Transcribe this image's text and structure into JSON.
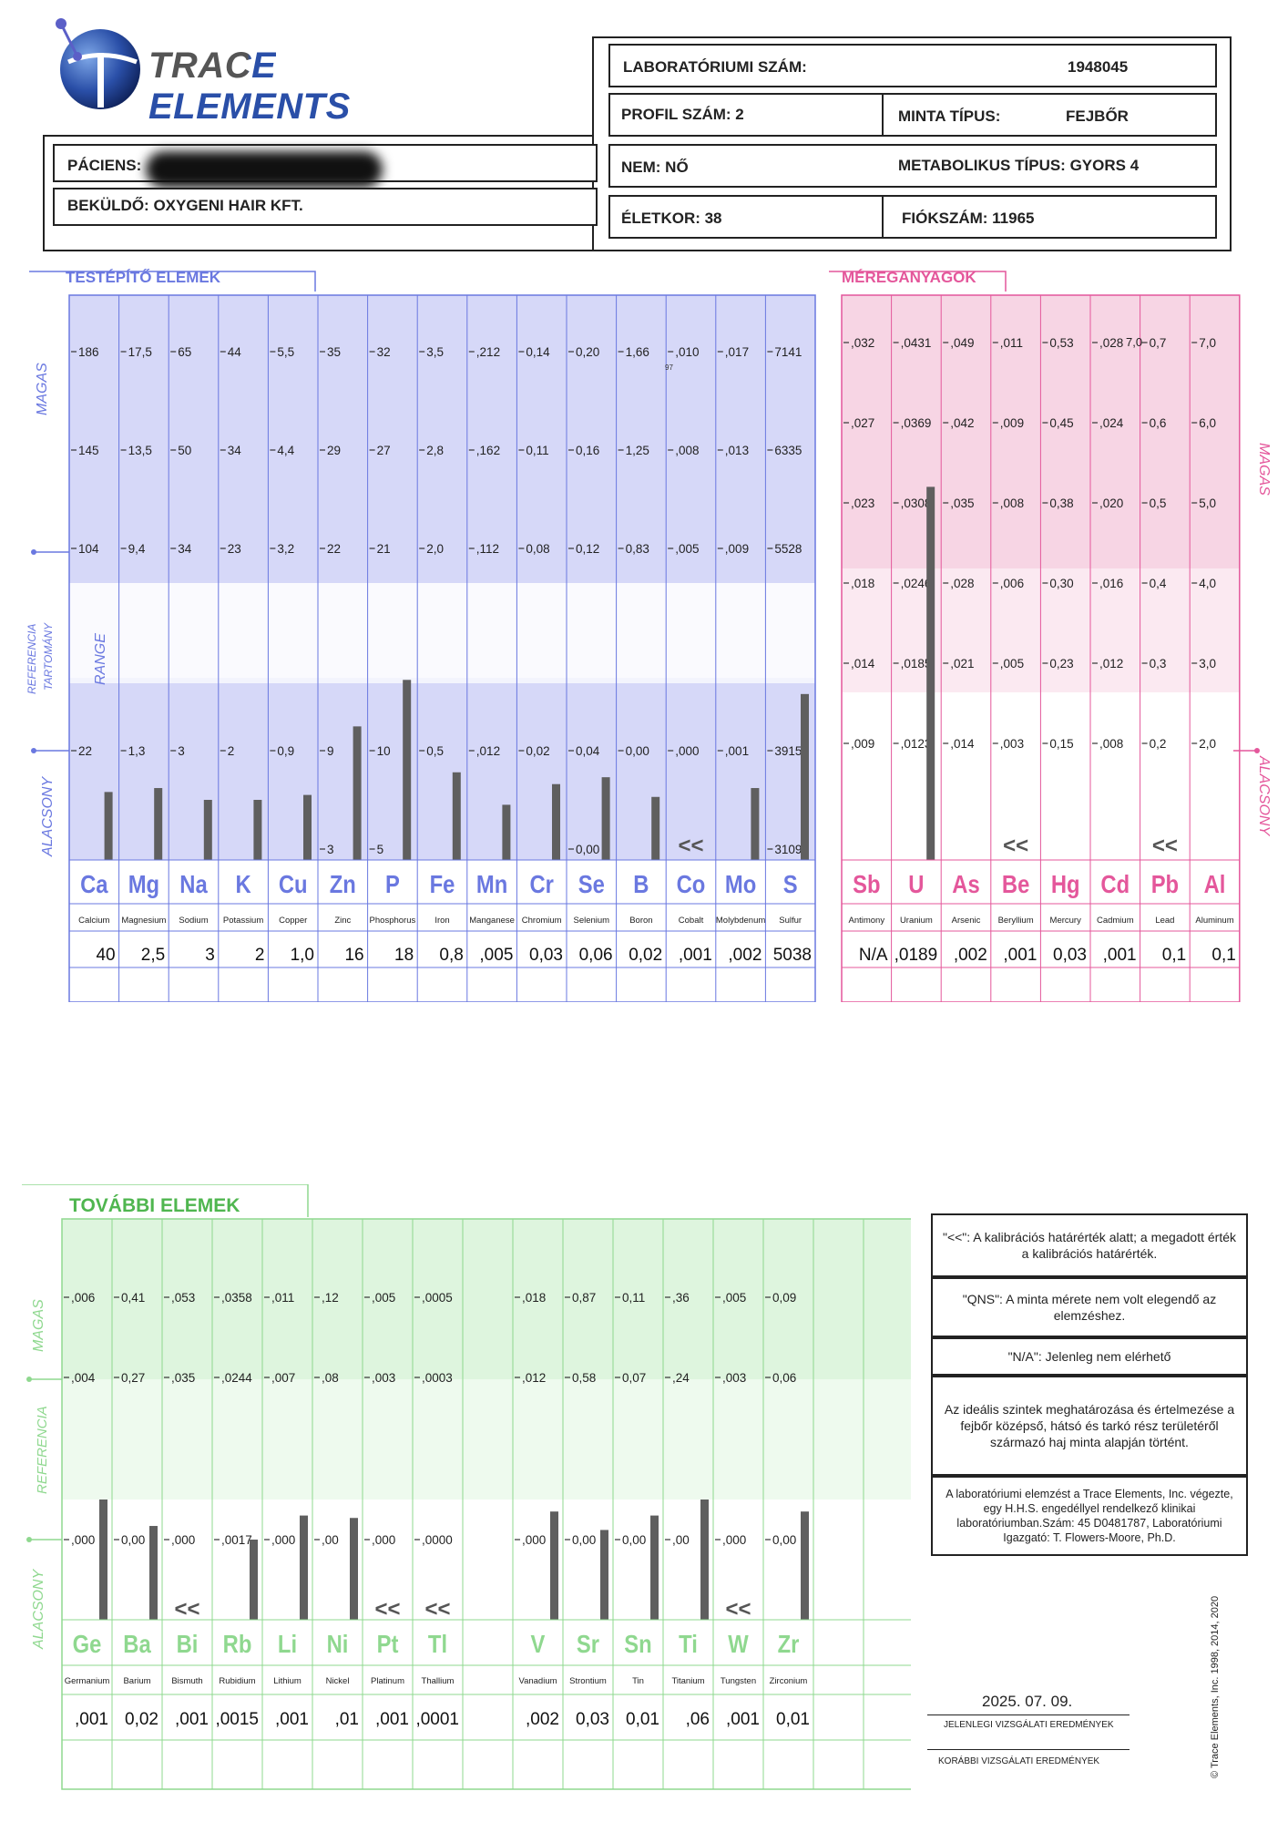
{
  "logo": {
    "text": "TRACE ELEMENTS"
  },
  "header": {
    "lab_label": "LABORATÓRIUMI SZÁM:",
    "lab_value": "1948045",
    "profile_label": "PROFIL SZÁM: 2",
    "sample_label": "MINTA TÍPUS:",
    "sample_value": "FEJBŐR",
    "patient_label": "PÁCIENS:",
    "sender": "BEKÜLDŐ: OXYGENI HAIR KFT.",
    "sex": "NEM: NŐ",
    "metabolic": "METABOLIKUS TÍPUS: GYORS 4",
    "age": "ÉLETKOR: 38",
    "drawer": "FIÓKSZÁM: 11965"
  },
  "colors": {
    "blue": "#6a78e0",
    "blue_band_dark": "#d6d8f8",
    "blue_band_light": "#eceefc",
    "pink": "#e4579b",
    "pink_band_dark": "#f7d5e4",
    "pink_band_light": "#fbe9f1",
    "green": "#8fd88f",
    "green_text": "#4fb64f",
    "green_band_dark": "#def5de",
    "green_band_light": "#eefaee",
    "bar": "#5f5f5f"
  },
  "labels": {
    "nutrients_title": "TESTÉPÍTŐ ELEMEK",
    "toxic_title": "MÉREGANYAGOK",
    "additional_title": "TOVÁBBI ELEMEK",
    "high": "MAGAS",
    "low": "ALACSONY",
    "reference": "REFERENCIA",
    "reference_range": "TARTOMÁNY",
    "range": "RANGE",
    "below_marker": "<<",
    "stray_mark": "97",
    "stray_pb_top": "7,0"
  },
  "chart_data": [
    {
      "type": "bar",
      "section": "nutrient",
      "symbols": [
        "Ca",
        "Mg",
        "Na",
        "K",
        "Cu",
        "Zn",
        "P",
        "Fe",
        "Mn",
        "Cr",
        "Se",
        "B",
        "Co",
        "Mo",
        "S"
      ],
      "names": [
        "Calcium",
        "Magnesium",
        "Sodium",
        "Potassium",
        "Copper",
        "Zinc",
        "Phosphorus",
        "Iron",
        "Manganese",
        "Chromium",
        "Selenium",
        "Boron",
        "Cobalt",
        "Molybdenum",
        "Sulfur"
      ],
      "results": [
        "40",
        "2,5",
        "3",
        "2",
        "1,0",
        "16",
        "18",
        "0,8",
        ",005",
        "0,03",
        "0,06",
        "0,02",
        ",001",
        ",002",
        "5038"
      ],
      "ticks": [
        [
          "186",
          "145",
          "104",
          "22",
          ""
        ],
        [
          "17,5",
          "13,5",
          "9,4",
          "1,3",
          ""
        ],
        [
          "65",
          "50",
          "34",
          "3",
          ""
        ],
        [
          "44",
          "34",
          "23",
          "2",
          ""
        ],
        [
          "5,5",
          "4,4",
          "3,2",
          "0,9",
          ""
        ],
        [
          "35",
          "29",
          "22",
          "9",
          "3"
        ],
        [
          "32",
          "27",
          "21",
          "10",
          "5"
        ],
        [
          "3,5",
          "2,8",
          "2,0",
          "0,5",
          ""
        ],
        [
          ",212",
          ",162",
          ",112",
          ",012",
          ""
        ],
        [
          "0,14",
          "0,11",
          "0,08",
          "0,02",
          ""
        ],
        [
          "0,20",
          "0,16",
          "0,12",
          "0,04",
          "0,00"
        ],
        [
          "1,66",
          "1,25",
          "0,83",
          "0,00",
          ""
        ],
        [
          ",010",
          ",008",
          ",005",
          ",000",
          ""
        ],
        [
          ",017",
          ",013",
          ",009",
          ",001",
          ""
        ],
        [
          "7141",
          "6335",
          "5528",
          "3915",
          "3109"
        ]
      ],
      "levels": [
        0.58,
        0.62,
        0.5,
        0.5,
        0.55,
        1.12,
        1.35,
        0.78,
        0.45,
        0.66,
        0.73,
        0.53,
        0,
        0.62,
        1.28
      ],
      "below_calibration": [
        false,
        false,
        false,
        false,
        false,
        false,
        false,
        false,
        false,
        false,
        false,
        false,
        true,
        false,
        false
      ]
    },
    {
      "type": "bar",
      "section": "toxic",
      "symbols": [
        "Sb",
        "U",
        "As",
        "Be",
        "Hg",
        "Cd",
        "Pb",
        "Al"
      ],
      "names": [
        "Antimony",
        "Uranium",
        "Arsenic",
        "Beryllium",
        "Mercury",
        "Cadmium",
        "Lead",
        "Aluminum"
      ],
      "results": [
        "N/A",
        ",0189",
        ",002",
        ",001",
        "0,03",
        ",001",
        "0,1",
        "0,1"
      ],
      "ticks": [
        [
          ",032",
          ",027",
          ",023",
          ",018",
          ",014",
          ",009"
        ],
        [
          ",0431",
          ",0369",
          ",0308",
          ",0246",
          ",0185",
          ",0123"
        ],
        [
          ",049",
          ",042",
          ",035",
          ",028",
          ",021",
          ",014"
        ],
        [
          ",011",
          ",009",
          ",008",
          ",006",
          ",005",
          ",003"
        ],
        [
          "0,53",
          "0,45",
          "0,38",
          "0,30",
          "0,23",
          "0,15"
        ],
        [
          ",028",
          ",024",
          ",020",
          ",016",
          ",012",
          ",008"
        ],
        [
          "0,7",
          "0,6",
          "0,5",
          "0,4",
          "0,3",
          "0,2"
        ],
        [
          "7,0",
          "6,0",
          "5,0",
          "4,0",
          "3,0",
          "2,0"
        ]
      ],
      "levels": [
        0,
        4.2,
        0,
        0,
        0,
        0,
        0,
        0
      ],
      "below_calibration": [
        false,
        false,
        false,
        true,
        false,
        false,
        true,
        false
      ]
    },
    {
      "type": "bar",
      "section": "additional",
      "symbols": [
        "Ge",
        "Ba",
        "Bi",
        "Rb",
        "Li",
        "Ni",
        "Pt",
        "Tl",
        "",
        "V",
        "Sr",
        "Sn",
        "Ti",
        "W",
        "Zr",
        "",
        ""
      ],
      "names": [
        "Germanium",
        "Barium",
        "Bismuth",
        "Rubidium",
        "Lithium",
        "Nickel",
        "Platinum",
        "Thallium",
        "",
        "Vanadium",
        "Strontium",
        "Tin",
        "Titanium",
        "Tungsten",
        "Zirconium",
        "",
        ""
      ],
      "results": [
        ",001",
        "0,02",
        ",001",
        ",0015",
        ",001",
        ",01",
        ",001",
        ",0001",
        "",
        ",002",
        "0,03",
        "0,01",
        ",06",
        ",001",
        "0,01",
        "",
        ""
      ],
      "ticks": [
        [
          ",006",
          ",004",
          ",000"
        ],
        [
          "0,41",
          "0,27",
          "0,00"
        ],
        [
          ",053",
          ",035",
          ",000"
        ],
        [
          ",0358",
          ",0244",
          ",0017"
        ],
        [
          ",011",
          ",007",
          ",000"
        ],
        [
          ",12",
          ",08",
          ",00"
        ],
        [
          ",005",
          ",003",
          ",000"
        ],
        [
          ",0005",
          ",0003",
          ",0000"
        ],
        [
          "",
          "",
          ""
        ],
        [
          ",018",
          ",012",
          ",000"
        ],
        [
          "0,87",
          "0,58",
          "0,00"
        ],
        [
          "0,11",
          "0,07",
          "0,00"
        ],
        [
          ",36",
          ",24",
          ",00"
        ],
        [
          ",005",
          ",003",
          ",000"
        ],
        [
          "0,09",
          "0,06",
          "0,00"
        ],
        [
          "",
          "",
          ""
        ],
        [
          "",
          "",
          ""
        ]
      ],
      "levels": [
        1.5,
        1.17,
        0,
        1.0,
        1.3,
        1.27,
        0,
        0,
        0,
        1.35,
        1.12,
        1.3,
        1.5,
        0,
        1.35,
        0,
        0
      ],
      "below_calibration": [
        false,
        false,
        true,
        false,
        false,
        false,
        true,
        true,
        false,
        false,
        false,
        false,
        false,
        true,
        false,
        false,
        false
      ]
    }
  ],
  "notes": [
    "\"<<\": A kalibrációs határérték alatt; a megadott érték a kalibrációs határérték.",
    "\"QNS\": A minta mérete nem volt elegendő az elemzéshez.",
    "\"N/A\": Jelenleg nem elérhető",
    "Az ideális szintek meghatározása és értelmezése a fejbőr középső, hátsó és tarkó rész területéről származó haj minta alapján történt.",
    "A laboratóriumi elemzést a Trace Elements, Inc. végezte, egy H.H.S. engedéllyel rendelkező klinikai laboratóriumban.Szám: 45 D0481787, Laboratóriumi Igazgató: T. Flowers-Moore, Ph.D."
  ],
  "footer": {
    "date": "2025. 07. 09.",
    "current": "JELENLEGI VIZSGÁLATI EREDMÉNYEK",
    "previous": "KORÁBBI VIZSGÁLATI EREDMÉNYEK",
    "copyright": "© Trace Elements, Inc. 1998, 2014, 2020"
  }
}
